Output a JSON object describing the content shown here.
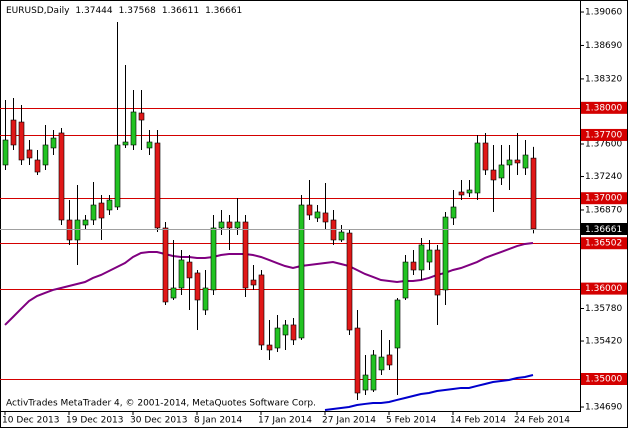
{
  "chart_data": {
    "type": "candlestick",
    "symbol": "EURUSD,Daily",
    "footer": "ActivTrades MetaTrader 4, © 2001-2014, MetaQuotes Software Corp.",
    "categories": [
      "10 Dec 2013",
      null,
      null,
      null,
      null,
      null,
      null,
      null,
      "19 Dec 2013",
      null,
      null,
      null,
      null,
      null,
      null,
      null,
      "30 Dec 2013",
      null,
      null,
      null,
      null,
      null,
      null,
      null,
      "8 Jan 2014",
      null,
      null,
      null,
      null,
      null,
      null,
      null,
      "17 Jan 2014",
      null,
      null,
      null,
      null,
      null,
      null,
      null,
      "27 Jan 2014",
      null,
      null,
      null,
      null,
      null,
      null,
      null,
      "5 Feb 2014",
      null,
      null,
      null,
      null,
      null,
      null,
      null,
      "14 Feb 2014",
      null,
      null,
      null,
      null,
      null,
      null,
      null,
      "24 Feb 2014",
      null,
      null
    ],
    "candles": {
      "up_color": "#22c322",
      "down_color": "#e01818",
      "open": [
        1.37368,
        1.37865,
        1.37843,
        1.37534,
        1.37423,
        1.37368,
        1.37556,
        1.37722,
        1.36759,
        1.36538,
        1.36704,
        1.36759,
        1.36947,
        1.3687,
        1.36903,
        1.37589,
        1.37589,
        1.37943,
        1.37556,
        1.37611,
        1.36671,
        1.35896,
        1.36007,
        1.36294,
        1.36173,
        1.35763,
        1.35985,
        1.36671,
        1.36737,
        1.36671,
        1.36737,
        1.36095,
        1.36151,
        1.35376,
        1.35343,
        1.35487,
        1.35598,
        1.35454,
        1.36925,
        1.36781,
        1.36837,
        1.36759,
        1.36538,
        1.36615,
        1.35564,
        1.34878,
        1.34878,
        1.351,
        1.35266,
        1.35343,
        1.35896,
        1.36294,
        1.36206,
        1.36294,
        1.36427,
        1.35985,
        1.36781,
        1.37069,
        1.37058,
        1.37058,
        1.37611,
        1.37312,
        1.37224,
        1.37368,
        1.37423,
        1.37334,
        1.37444
      ],
      "high": [
        1.38087,
        1.38109,
        1.38031,
        1.37644,
        1.37534,
        1.3781,
        1.37755,
        1.37777,
        1.3698,
        1.37146,
        1.36814,
        1.3718,
        1.37036,
        1.37036,
        1.3895,
        1.38474,
        1.38197,
        1.38197,
        1.37755,
        1.37755,
        1.36737,
        1.36538,
        1.36427,
        1.36372,
        1.36206,
        1.36206,
        1.36814,
        1.3687,
        1.36814,
        1.37003,
        1.36814,
        1.36261,
        1.36206,
        1.35653,
        1.35708,
        1.35653,
        1.35675,
        1.37036,
        1.37202,
        1.36925,
        1.37168,
        1.3687,
        1.36704,
        1.36649,
        1.35763,
        1.35266,
        1.35321,
        1.35542,
        1.35432,
        1.35896,
        1.36372,
        1.36427,
        1.3656,
        1.36538,
        1.36483,
        1.36848,
        1.37091,
        1.37202,
        1.37202,
        1.37699,
        1.37722,
        1.37589,
        1.37589,
        1.37589,
        1.37722,
        1.37644,
        1.37568
      ],
      "low": [
        1.37312,
        1.37534,
        1.37368,
        1.37368,
        1.37257,
        1.37312,
        1.37478,
        1.36704,
        1.36483,
        1.36261,
        1.36649,
        1.36704,
        1.36538,
        1.36814,
        1.3687,
        1.37556,
        1.37534,
        1.37534,
        1.37478,
        1.36626,
        1.35819,
        1.35874,
        1.35929,
        1.35763,
        1.35542,
        1.35708,
        1.35929,
        1.36593,
        1.36427,
        1.36593,
        1.35907,
        1.35985,
        1.35321,
        1.3521,
        1.35299,
        1.35321,
        1.35376,
        1.35432,
        1.36759,
        1.36737,
        1.36649,
        1.36483,
        1.36516,
        1.35487,
        1.34768,
        1.34823,
        1.34856,
        1.35044,
        1.351,
        1.34823,
        1.35874,
        1.36151,
        1.36095,
        1.36206,
        1.35598,
        1.35819,
        1.36704,
        1.3698,
        1.37014,
        1.3698,
        1.37257,
        1.36848,
        1.37146,
        1.37091,
        1.37257,
        1.37257,
        1.36611
      ],
      "close": [
        1.37644,
        1.37589,
        1.37423,
        1.37445,
        1.3729,
        1.37589,
        1.37666,
        1.36759,
        1.36538,
        1.36759,
        1.36759,
        1.36925,
        1.36781,
        1.3698,
        1.37589,
        1.37622,
        1.37954,
        1.37865,
        1.37622,
        1.36671,
        1.35852,
        1.36007,
        1.36317,
        1.36118,
        1.35874,
        1.36007,
        1.36671,
        1.36737,
        1.36671,
        1.36737,
        1.36007,
        1.3604,
        1.35376,
        1.35321,
        1.35564,
        1.35598,
        1.35432,
        1.36925,
        1.36814,
        1.36848,
        1.36737,
        1.36538,
        1.36626,
        1.35542,
        1.34845,
        1.35044,
        1.35266,
        1.35243,
        1.35155,
        1.35874,
        1.36294,
        1.36206,
        1.36483,
        1.36427,
        1.35929,
        1.36792,
        1.36903,
        1.37036,
        1.37091,
        1.37611,
        1.37312,
        1.37202,
        1.37368,
        1.37423,
        1.3739,
        1.37478,
        1.36661
      ]
    },
    "series": [
      {
        "color": "#800080",
        "values": [
          1.35598,
          1.35686,
          1.35775,
          1.35863,
          1.35918,
          1.35952,
          1.35985,
          1.36007,
          1.36029,
          1.36051,
          1.36073,
          1.36118,
          1.36151,
          1.36195,
          1.36239,
          1.36283,
          1.3635,
          1.36394,
          1.36405,
          1.36405,
          1.36383,
          1.36361,
          1.3635,
          1.3635,
          1.36339,
          1.36339,
          1.3635,
          1.36372,
          1.36383,
          1.36383,
          1.36383,
          1.36372,
          1.3635,
          1.36317,
          1.36283,
          1.3625,
          1.36228,
          1.3625,
          1.36261,
          1.36272,
          1.36283,
          1.36294,
          1.36272,
          1.3625,
          1.36206,
          1.36162,
          1.36129,
          1.36095,
          1.36084,
          1.36073,
          1.36084,
          1.36084,
          1.36095,
          1.36118,
          1.36151,
          1.36173,
          1.36206,
          1.36228,
          1.36261,
          1.36294,
          1.36339,
          1.36372,
          1.36405,
          1.36438,
          1.36471,
          1.36494,
          1.36505
        ]
      },
      {
        "color": "#0000cd",
        "values": [
          null,
          null,
          null,
          null,
          null,
          null,
          null,
          null,
          null,
          null,
          null,
          null,
          null,
          null,
          null,
          null,
          null,
          null,
          null,
          null,
          null,
          null,
          null,
          null,
          null,
          null,
          null,
          null,
          null,
          null,
          null,
          null,
          null,
          null,
          null,
          null,
          null,
          null,
          null,
          null,
          1.34657,
          1.34668,
          1.34679,
          1.3469,
          1.34712,
          1.34724,
          1.34735,
          1.34735,
          1.34746,
          1.34768,
          1.3479,
          1.34812,
          1.34834,
          1.34845,
          1.34867,
          1.34878,
          1.34889,
          1.34901,
          1.34901,
          1.34923,
          1.34945,
          1.34967,
          1.34978,
          1.34989,
          1.35011,
          1.35022,
          1.35044
        ]
      }
    ],
    "levels": [
      {
        "value": 1.38,
        "label": "1.38000"
      },
      {
        "value": 1.377,
        "label": "1.37700"
      },
      {
        "value": 1.37,
        "label": "1.37000"
      },
      1.36502,
      {
        "value": 1.36,
        "label": "1.36000"
      },
      {
        "value": 1.35,
        "label": "1.35000"
      }
    ],
    "level_color": "#d40000",
    "ylim": [
      1.34657,
      1.39193
    ],
    "yticks": [
      {
        "value": 1.3906,
        "label": "1.39060"
      },
      {
        "value": 1.3869,
        "label": "1.38690"
      },
      {
        "value": 1.3832,
        "label": "1.38320"
      },
      {
        "value": 1.376,
        "label": "1.37600"
      },
      {
        "value": 1.3724,
        "label": "1.37240"
      },
      {
        "value": 1.3687,
        "label": "1.36870"
      },
      {
        "value": 1.3578,
        "label": "1.35780"
      },
      {
        "value": 1.3542,
        "label": "1.35420"
      },
      {
        "value": 1.3469,
        "label": "1.34690"
      }
    ],
    "grid": false
  }
}
